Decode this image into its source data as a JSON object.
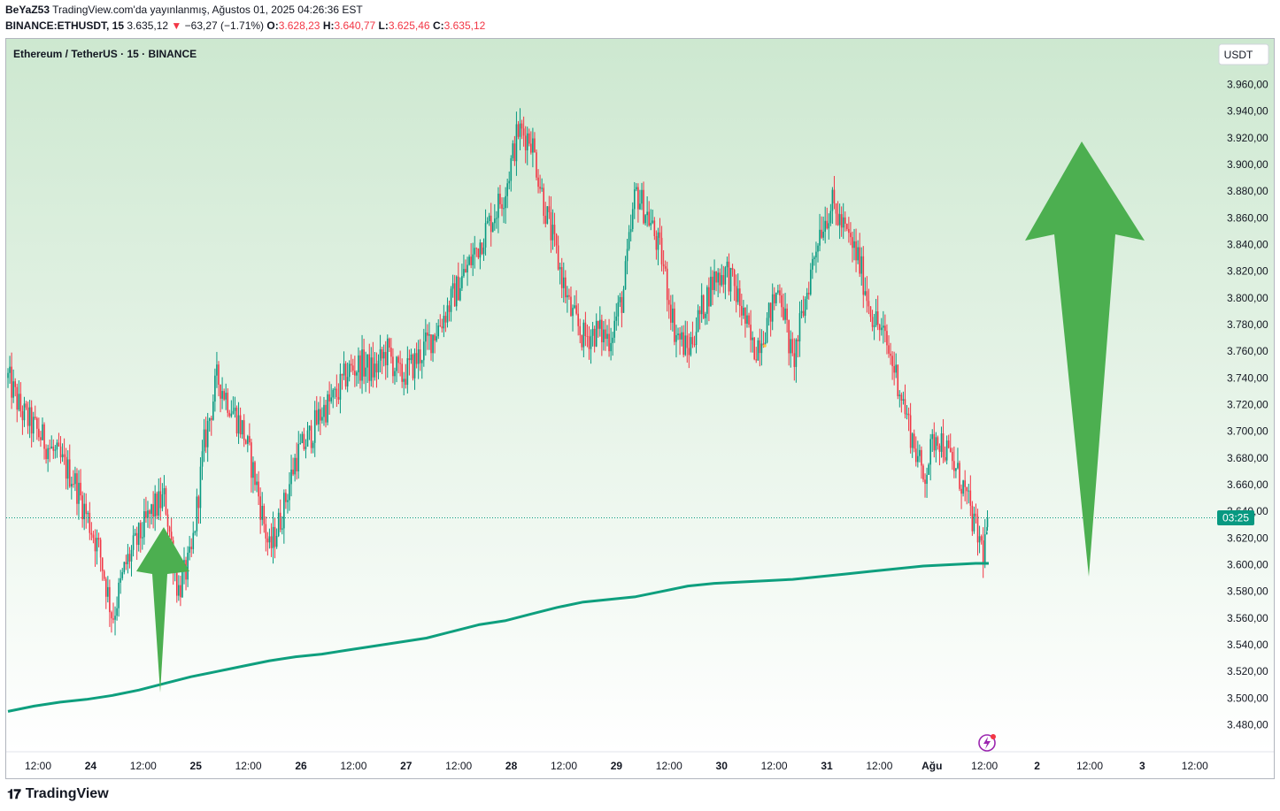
{
  "header": {
    "line1_user": "BeYaZ53",
    "line1_rest": " TradingView.com'da yayınlanmış, Ağustos 01, 2025 04:26:36 EST",
    "symbol": "BINANCE:ETHUSDT, 15",
    "last": "3.635,12",
    "change": "−63,27 (−1.71%)",
    "o_label": "O:",
    "o_val": "3.628,23",
    "h_label": "H:",
    "h_val": "3.640,77",
    "l_label": "L:",
    "l_val": "3.625,46",
    "c_label": "C:",
    "c_val": "3.635,12"
  },
  "chart_title": "Ethereum / TetherUS · 15 · BINANCE",
  "currency_button": "USDT",
  "price_tag": "03:25",
  "price_tag_value": 3635.12,
  "brand": "TradingView",
  "colors": {
    "up": "#089981",
    "down": "#f23645",
    "ma": "#0e9f7e",
    "arrow": "#4caf50",
    "bg_top": "#cde8d0",
    "bg_bottom": "#ffffff"
  },
  "chart_data": {
    "type": "candlestick",
    "title": "Ethereum / TetherUS · 15 · BINANCE",
    "ylabel": "USDT",
    "ylim": [
      3465,
      3985
    ],
    "y_ticks": [
      "3.960,00",
      "3.940,00",
      "3.920,00",
      "3.900,00",
      "3.880,00",
      "3.860,00",
      "3.840,00",
      "3.820,00",
      "3.800,00",
      "3.780,00",
      "3.760,00",
      "3.740,00",
      "3.720,00",
      "3.700,00",
      "3.680,00",
      "3.660,00",
      "3.640,00",
      "3.620,00",
      "3.600,00",
      "3.580,00",
      "3.560,00",
      "3.540,00",
      "3.520,00",
      "3.500,00",
      "3.480,00"
    ],
    "x_ticks": [
      "12:00",
      "24",
      "12:00",
      "25",
      "12:00",
      "26",
      "12:00",
      "27",
      "12:00",
      "28",
      "12:00",
      "29",
      "12:00",
      "30",
      "12:00",
      "31",
      "12:00",
      "Ağu",
      "12:00",
      "2",
      "12:00",
      "3",
      "12:00"
    ],
    "x_bold_ticks": [
      "24",
      "25",
      "26",
      "27",
      "28",
      "29",
      "30",
      "31",
      "Ağu",
      "2",
      "3"
    ],
    "price_path": [
      [
        0,
        3740
      ],
      [
        1,
        3715
      ],
      [
        3,
        3690
      ],
      [
        5,
        3665
      ],
      [
        7,
        3610
      ],
      [
        8,
        3560
      ],
      [
        9,
        3600
      ],
      [
        11,
        3640
      ],
      [
        12,
        3650
      ],
      [
        13,
        3580
      ],
      [
        14,
        3605
      ],
      [
        15,
        3690
      ],
      [
        16,
        3740
      ],
      [
        17,
        3720
      ],
      [
        18,
        3700
      ],
      [
        19,
        3660
      ],
      [
        20,
        3610
      ],
      [
        21,
        3640
      ],
      [
        22,
        3680
      ],
      [
        23,
        3695
      ],
      [
        24,
        3715
      ],
      [
        25,
        3725
      ],
      [
        26,
        3745
      ],
      [
        27,
        3750
      ],
      [
        28,
        3745
      ],
      [
        29,
        3760
      ],
      [
        30,
        3740
      ],
      [
        31,
        3750
      ],
      [
        32,
        3765
      ],
      [
        33,
        3780
      ],
      [
        34,
        3800
      ],
      [
        35,
        3820
      ],
      [
        36,
        3840
      ],
      [
        37,
        3860
      ],
      [
        38,
        3880
      ],
      [
        39,
        3925
      ],
      [
        40,
        3920
      ],
      [
        41,
        3870
      ],
      [
        42,
        3830
      ],
      [
        43,
        3790
      ],
      [
        44,
        3770
      ],
      [
        45,
        3775
      ],
      [
        46,
        3770
      ],
      [
        47,
        3800
      ],
      [
        48,
        3880
      ],
      [
        49,
        3860
      ],
      [
        50,
        3830
      ],
      [
        51,
        3775
      ],
      [
        52,
        3760
      ],
      [
        53,
        3790
      ],
      [
        54,
        3815
      ],
      [
        55,
        3820
      ],
      [
        56,
        3795
      ],
      [
        57,
        3760
      ],
      [
        58,
        3780
      ],
      [
        59,
        3810
      ],
      [
        60,
        3750
      ],
      [
        61,
        3800
      ],
      [
        62,
        3850
      ],
      [
        63,
        3870
      ],
      [
        64,
        3850
      ],
      [
        65,
        3830
      ],
      [
        66,
        3790
      ],
      [
        67,
        3770
      ],
      [
        68,
        3740
      ],
      [
        69,
        3700
      ],
      [
        70,
        3665
      ],
      [
        71,
        3700
      ],
      [
        72,
        3680
      ],
      [
        73,
        3660
      ],
      [
        74,
        3625
      ],
      [
        74.6,
        3610
      ],
      [
        75,
        3635
      ]
    ],
    "moving_average": [
      [
        0,
        3490
      ],
      [
        2,
        3494
      ],
      [
        4,
        3497
      ],
      [
        6,
        3499
      ],
      [
        8,
        3502
      ],
      [
        10,
        3506
      ],
      [
        12,
        3511
      ],
      [
        14,
        3516
      ],
      [
        16,
        3520
      ],
      [
        18,
        3524
      ],
      [
        20,
        3528
      ],
      [
        22,
        3531
      ],
      [
        24,
        3533
      ],
      [
        26,
        3536
      ],
      [
        28,
        3539
      ],
      [
        30,
        3542
      ],
      [
        32,
        3545
      ],
      [
        34,
        3550
      ],
      [
        36,
        3555
      ],
      [
        38,
        3558
      ],
      [
        40,
        3563
      ],
      [
        42,
        3568
      ],
      [
        44,
        3572
      ],
      [
        46,
        3574
      ],
      [
        48,
        3576
      ],
      [
        50,
        3580
      ],
      [
        52,
        3584
      ],
      [
        54,
        3586
      ],
      [
        56,
        3587
      ],
      [
        58,
        3588
      ],
      [
        60,
        3589
      ],
      [
        62,
        3591
      ],
      [
        64,
        3593
      ],
      [
        66,
        3595
      ],
      [
        68,
        3597
      ],
      [
        70,
        3599
      ],
      [
        72,
        3600
      ],
      [
        74,
        3601
      ],
      [
        75,
        3601
      ]
    ],
    "current_price": 3635.12
  }
}
